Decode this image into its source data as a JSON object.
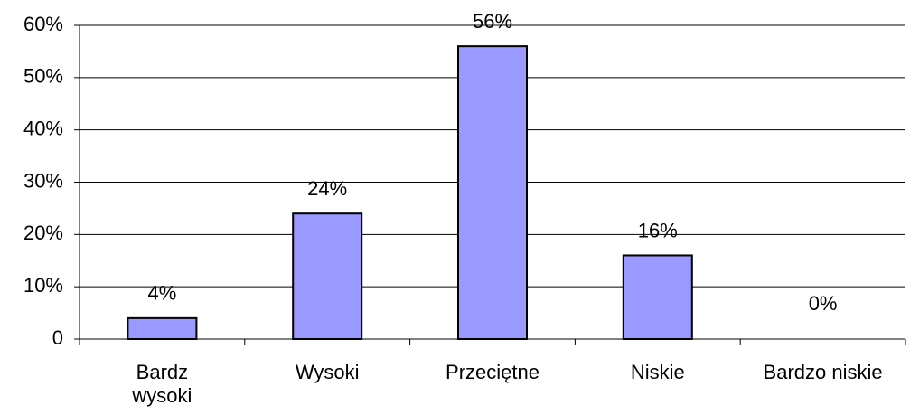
{
  "chart_data": {
    "type": "bar",
    "categories": [
      "Bardz\nwysoki",
      "Wysoki",
      "Przeciętne",
      "Niskie",
      "Bardzo niskie"
    ],
    "values": [
      4,
      24,
      56,
      16,
      0
    ],
    "value_labels": [
      "4%",
      "24%",
      "56%",
      "16%",
      "0%"
    ],
    "color": "#9999ff",
    "ylim": [
      0,
      60
    ],
    "yticks": [
      0,
      {
        "value": 10,
        "label": "10%"
      },
      {
        "value": 20,
        "label": "20%"
      },
      {
        "value": 30,
        "label": "30%"
      },
      {
        "value": 40,
        "label": "40%"
      },
      {
        "value": 50,
        "label": "50%"
      },
      {
        "value": 60,
        "label": "60%"
      }
    ],
    "grid": true
  }
}
